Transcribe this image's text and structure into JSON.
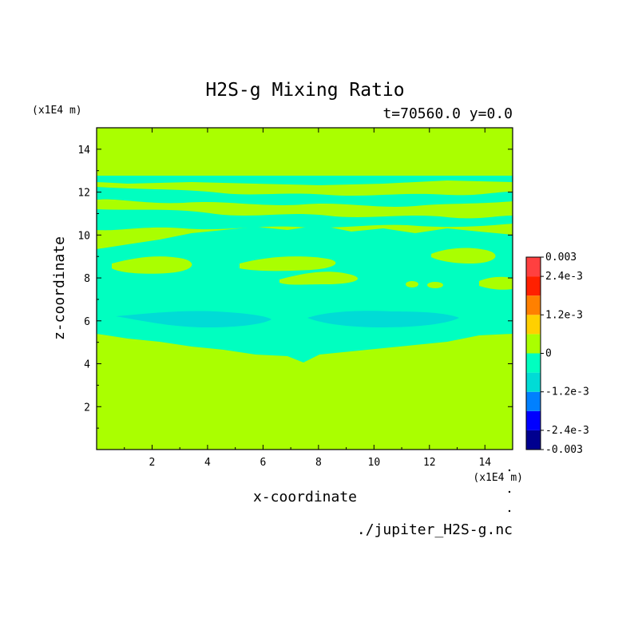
{
  "chart_data": {
    "type": "heatmap",
    "title": "H2S-g Mixing Ratio",
    "subtitle": "t=70560.0 y=0.0",
    "x_units": "(x1E4 m)",
    "z_units": "(x1E4 m)",
    "xlabel": "x-coordinate",
    "ylabel": "z-coordinate",
    "source": "./jupiter_H2S-g.nc",
    "xlim": [
      0,
      15
    ],
    "ylim": [
      0,
      15
    ],
    "x_ticks": [
      "2",
      "4",
      "6",
      "8",
      "10",
      "12",
      "14"
    ],
    "y_ticks": [
      "2",
      "4",
      "6",
      "8",
      "10",
      "12",
      "14"
    ],
    "colorbar": {
      "range": [
        -0.003,
        0.003
      ],
      "tick_labels": [
        "0.003",
        "2.4e-3",
        "1.2e-3",
        "0",
        "-1.2e-3",
        "-2.4e-3",
        "-0.003"
      ],
      "tick_values": [
        0.003,
        0.0024,
        0.0012,
        0,
        -0.0012,
        -0.0024,
        -0.003
      ],
      "colors": [
        "#00008f",
        "#0000ff",
        "#0080ff",
        "#00dcd6",
        "#00ffc0",
        "#aaff00",
        "#ffd000",
        "#ff8000",
        "#ff2000",
        "#ff4040"
      ]
    },
    "background_level": 0.0003,
    "regions": [
      {
        "level": -0.0003,
        "description": "negative band",
        "z_range": [
          4.1,
          12.7
        ]
      },
      {
        "level": -0.0009,
        "description": "lens left",
        "center": [
          4.6,
          6.15
        ],
        "extent": [
          3.9,
          0.55
        ]
      },
      {
        "level": -0.0009,
        "description": "lens right",
        "center": [
          10.4,
          6.15
        ],
        "extent": [
          2.7,
          0.55
        ]
      }
    ]
  }
}
